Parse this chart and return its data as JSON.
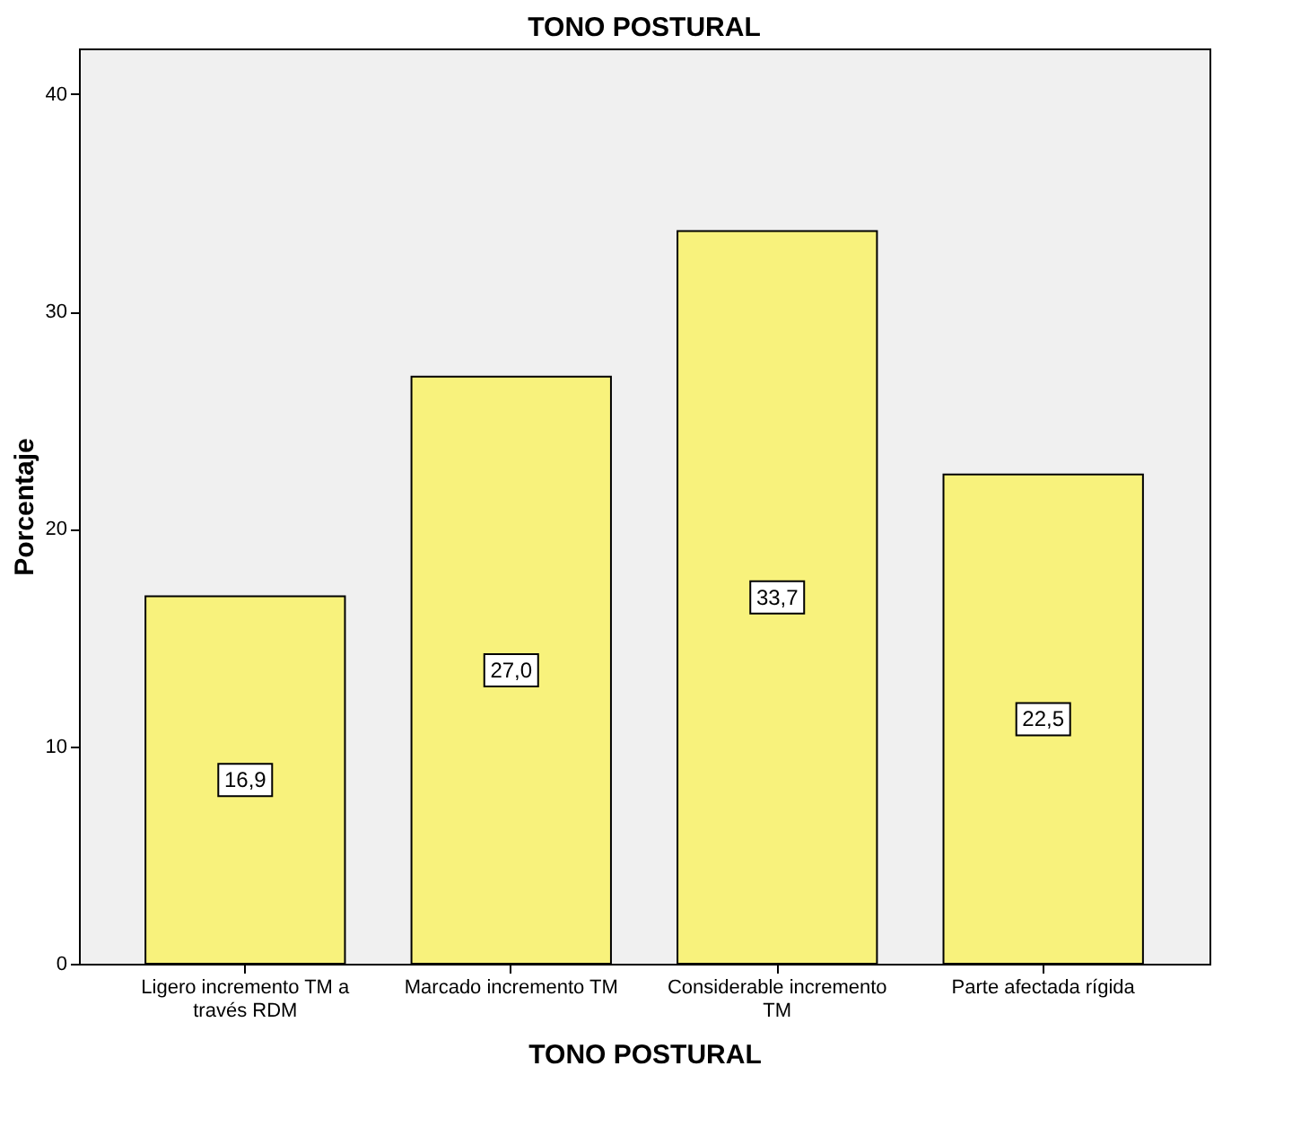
{
  "chart_data": {
    "type": "bar",
    "title": "TONO POSTURAL",
    "xlabel": "TONO POSTURAL",
    "ylabel": "Porcentaje",
    "categories": [
      "Ligero incremento TM a través RDM",
      "Marcado incremento TM",
      "Considerable incremento TM",
      "Parte afectada rígida"
    ],
    "values": [
      16.9,
      27.0,
      33.7,
      22.5
    ],
    "value_labels": [
      "16,9",
      "27,0",
      "33,7",
      "22,5"
    ],
    "color": "#f8f27c",
    "ylim": [
      0,
      42.1
    ],
    "yticks": [
      0,
      10,
      20,
      30,
      40
    ],
    "grid": false
  }
}
